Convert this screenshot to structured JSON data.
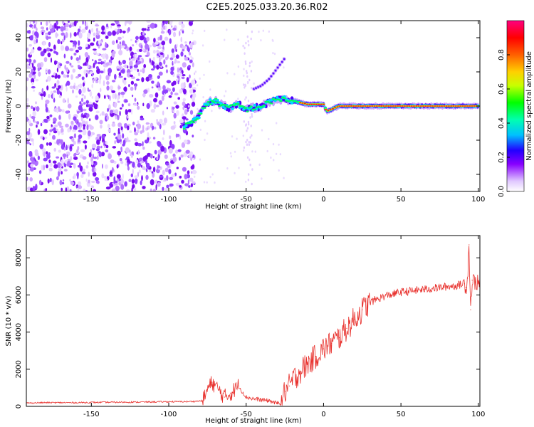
{
  "title": "C2E5.2025.033.20.36.R02",
  "chart_data": [
    {
      "type": "heatmap",
      "xlabel": "Height of straight line (km)",
      "ylabel": "Frequency (Hz)",
      "xlim": [
        -192,
        101
      ],
      "ylim": [
        -50,
        50
      ],
      "xticks": [
        -150,
        -100,
        -50,
        0,
        50,
        100
      ],
      "yticks": [
        -40,
        -20,
        0,
        20,
        40
      ],
      "colorbar": {
        "label": "Normalized spectral amplitude",
        "ticks": [
          0.0,
          0.2,
          0.4,
          0.6,
          0.8
        ],
        "range": [
          0,
          1
        ],
        "colormap": "rainbow (white-violet-blue-cyan-green-yellow-orange-red-magenta)"
      },
      "noise_region": {
        "x": [
          -192,
          -83
        ],
        "y": [
          -50,
          50
        ]
      },
      "signal_trace": {
        "x": [
          -90,
          -85,
          -80,
          -75,
          -70,
          -65,
          -60,
          -55,
          -50,
          -45,
          -40,
          -35,
          -30,
          -25,
          -20,
          -15,
          -10,
          -5,
          0,
          2,
          5,
          10,
          20,
          40,
          60,
          80,
          100
        ],
        "y": [
          -12,
          -10,
          -5,
          2,
          3,
          0,
          -1,
          1,
          -2,
          -1,
          0,
          2,
          4,
          4,
          3,
          2,
          1,
          1,
          1,
          -3,
          -2,
          0,
          0,
          0,
          0,
          0,
          0
        ],
        "peak_amplitude_from_x": -15
      },
      "secondary_trace": {
        "x": [
          -45,
          -40,
          -35,
          -30,
          -25
        ],
        "y": [
          10,
          12,
          16,
          22,
          28
        ]
      },
      "grid": false
    },
    {
      "type": "line",
      "xlabel": "Height of straight line (km)",
      "ylabel": "SNR (10 * v/v)",
      "xlim": [
        -192,
        101
      ],
      "ylim": [
        0,
        9200
      ],
      "xticks": [
        -150,
        -100,
        -50,
        0,
        50,
        100
      ],
      "yticks": [
        0,
        2000,
        4000,
        6000,
        8000
      ],
      "color": "#e8302c",
      "series": [
        {
          "x": [
            -192,
            -180,
            -160,
            -140,
            -120,
            -100,
            -85,
            -78,
            -75,
            -72,
            -68,
            -64,
            -60,
            -55,
            -50,
            -45,
            -40,
            -35,
            -30,
            -27,
            -25,
            -22,
            -20,
            -15,
            -10,
            -5,
            0,
            5,
            10,
            15,
            20,
            25,
            30,
            35,
            40,
            45,
            50,
            55,
            60,
            65,
            70,
            75,
            80,
            85,
            88,
            91,
            92,
            93,
            94,
            95,
            96,
            98,
            101
          ],
          "y": [
            180,
            200,
            200,
            220,
            230,
            250,
            260,
            300,
            900,
            1300,
            900,
            500,
            700,
            1100,
            500,
            400,
            350,
            300,
            150,
            300,
            800,
            1100,
            1400,
            1900,
            2300,
            2700,
            3100,
            3400,
            3700,
            4200,
            4700,
            5200,
            5600,
            5800,
            5950,
            6050,
            6150,
            6200,
            6250,
            6300,
            6350,
            6400,
            6450,
            6500,
            6550,
            6600,
            6400,
            6900,
            8700,
            5200,
            6800,
            6700,
            6600
          ]
        }
      ],
      "grid": false
    }
  ]
}
